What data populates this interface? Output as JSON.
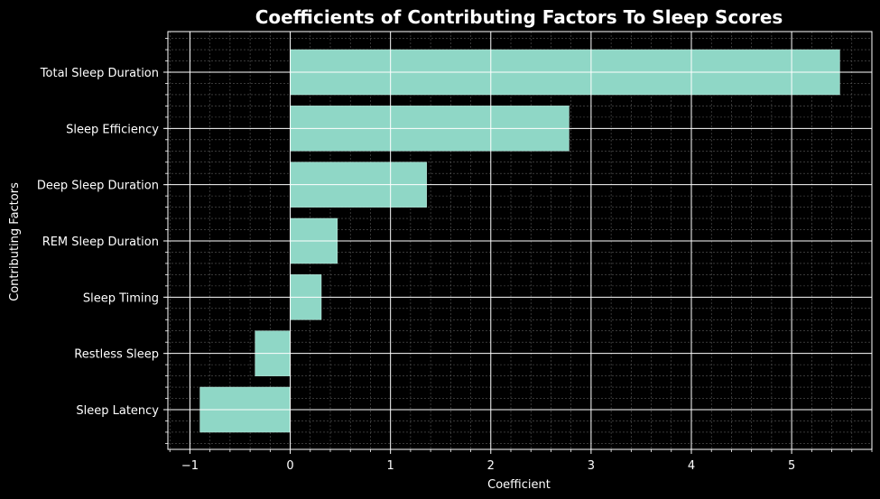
{
  "chart_data": {
    "type": "bar",
    "orientation": "horizontal",
    "title": "Coefficients of Contributing Factors To Sleep Scores",
    "xlabel": "Coefficient",
    "ylabel": "Contributing Factors",
    "categories": [
      "Total Sleep Duration",
      "Sleep Efficiency",
      "Deep Sleep Duration",
      "REM Sleep Duration",
      "Sleep Timing",
      "Restless Sleep",
      "Sleep Latency"
    ],
    "values": [
      5.48,
      2.78,
      1.36,
      0.47,
      0.31,
      -0.35,
      -0.9
    ],
    "xlim": [
      -1.22,
      5.8
    ],
    "xticks": [
      -1,
      0,
      1,
      2,
      3,
      4,
      5
    ],
    "xtick_labels": [
      "−1",
      "0",
      "1",
      "2",
      "3",
      "4",
      "5"
    ],
    "grid": true,
    "minor_grid": true,
    "colors": {
      "background": "#000000",
      "bar": "#8fd7c6",
      "bar_edge": "#bfe9de",
      "major_grid": "#ffffff",
      "minor_grid": "#5a5a5a",
      "text": "#ffffff"
    }
  }
}
